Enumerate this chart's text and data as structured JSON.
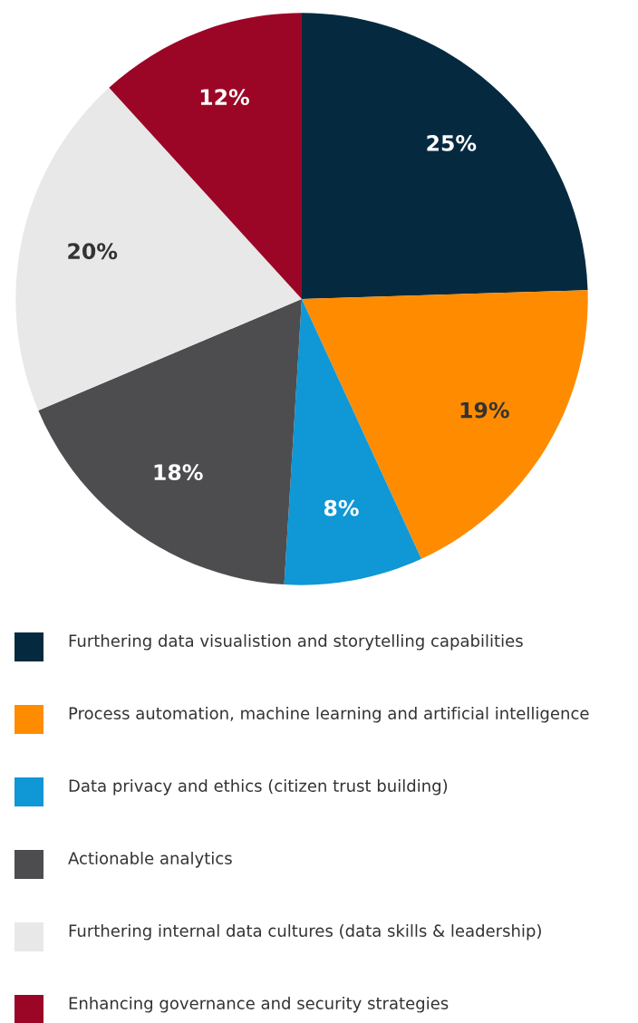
{
  "chart_data": {
    "type": "pie",
    "categories": [
      "Furthering data visualistion and storytelling capabilities",
      "Process automation, machine learning and artificial intelligence",
      "Data privacy and ethics (citizen trust building)",
      "Actionable analytics",
      "Furthering internal data cultures (data skills & leadership)",
      "Enhancing governance and security strategies"
    ],
    "values": [
      25,
      19,
      8,
      18,
      20,
      12
    ],
    "colors": [
      "#052a3f",
      "#ff8c00",
      "#0f97d6",
      "#4d4d4f",
      "#e8e8e8",
      "#9b0626"
    ],
    "value_labels": [
      "25%",
      "19%",
      "8%",
      "18%",
      "20%",
      "12%"
    ],
    "legend": "bottom"
  }
}
